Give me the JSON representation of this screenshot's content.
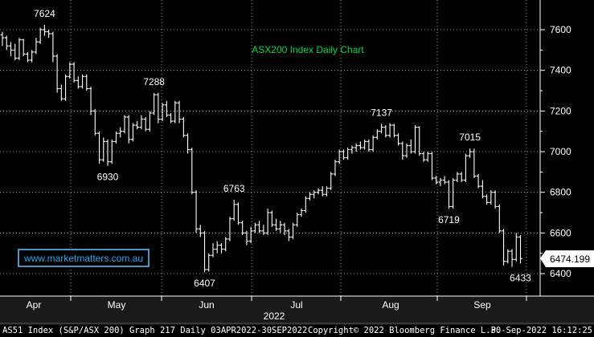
{
  "chart_data": {
    "type": "ohlc",
    "title": "ASX200 Index Daily Chart",
    "watermark": "www.marketmatters.com.au",
    "last_value": "6474.199",
    "ylim": [
      6330,
      7700
    ],
    "y_ticks": [
      7600,
      7400,
      7200,
      7000,
      6800,
      6600,
      6400
    ],
    "y_tick_labels": [
      "7600",
      "7400",
      "7200",
      "7000",
      "6800",
      "6600",
      "6400"
    ],
    "month_labels": [
      "Apr",
      "May",
      "Jun",
      "Jul",
      "Aug",
      "Sep"
    ],
    "year_label": "2022",
    "annotations": [
      {
        "label": "7624",
        "value": 7624
      },
      {
        "label": "6930",
        "value": 6930
      },
      {
        "label": "7288",
        "value": 7288
      },
      {
        "label": "6407",
        "value": 6407
      },
      {
        "label": "6763",
        "value": 6763
      },
      {
        "label": "7137",
        "value": 7137
      },
      {
        "label": "6719",
        "value": 6719
      },
      {
        "label": "7015",
        "value": 7015
      },
      {
        "label": "6433",
        "value": 6433
      }
    ],
    "series": [
      {
        "values": [
          [
            7575,
            7590,
            7520,
            7560
          ],
          [
            7560,
            7570,
            7500,
            7520
          ],
          [
            7520,
            7540,
            7470,
            7500
          ],
          [
            7500,
            7530,
            7450,
            7460
          ],
          [
            7460,
            7560,
            7450,
            7550
          ],
          [
            7550,
            7555,
            7470,
            7480
          ],
          [
            7480,
            7490,
            7440,
            7450
          ],
          [
            7450,
            7500,
            7440,
            7490
          ],
          [
            7490,
            7560,
            7480,
            7540
          ],
          [
            7540,
            7610,
            7530,
            7600
          ],
          [
            7600,
            7624,
            7570,
            7590
          ],
          [
            7590,
            7600,
            7560,
            7580
          ],
          [
            7580,
            7590,
            7440,
            7470
          ],
          [
            7470,
            7480,
            7290,
            7310
          ],
          [
            7310,
            7330,
            7250,
            7260
          ],
          [
            7260,
            7380,
            7250,
            7370
          ],
          [
            7370,
            7440,
            7360,
            7430
          ],
          [
            7430,
            7440,
            7340,
            7350
          ],
          [
            7350,
            7370,
            7310,
            7320
          ],
          [
            7320,
            7380,
            7310,
            7370
          ],
          [
            7370,
            7380,
            7300,
            7310
          ],
          [
            7310,
            7320,
            7180,
            7200
          ],
          [
            7200,
            7210,
            7080,
            7090
          ],
          [
            7090,
            7100,
            6940,
            6960
          ],
          [
            6960,
            7070,
            6950,
            7050
          ],
          [
            7050,
            7060,
            6930,
            6950
          ],
          [
            6950,
            7060,
            6940,
            7050
          ],
          [
            7050,
            7100,
            7040,
            7090
          ],
          [
            7090,
            7120,
            7070,
            7100
          ],
          [
            7100,
            7180,
            7090,
            7170
          ],
          [
            7170,
            7180,
            7040,
            7060
          ],
          [
            7060,
            7140,
            7050,
            7130
          ],
          [
            7130,
            7150,
            7110,
            7120
          ],
          [
            7120,
            7180,
            7110,
            7160
          ],
          [
            7160,
            7170,
            7100,
            7110
          ],
          [
            7110,
            7200,
            7100,
            7190
          ],
          [
            7190,
            7288,
            7180,
            7280
          ],
          [
            7280,
            7290,
            7140,
            7160
          ],
          [
            7160,
            7240,
            7150,
            7230
          ],
          [
            7230,
            7250,
            7170,
            7180
          ],
          [
            7180,
            7190,
            7140,
            7150
          ],
          [
            7150,
            7250,
            7140,
            7240
          ],
          [
            7240,
            7250,
            7140,
            7160
          ],
          [
            7160,
            7170,
            7070,
            7080
          ],
          [
            7080,
            7090,
            6990,
            7010
          ],
          [
            7010,
            7020,
            6790,
            6800
          ],
          [
            6800,
            6810,
            6600,
            6620
          ],
          [
            6620,
            6640,
            6580,
            6600
          ],
          [
            6600,
            6610,
            6407,
            6420
          ],
          [
            6420,
            6500,
            6410,
            6490
          ],
          [
            6490,
            6550,
            6480,
            6520
          ],
          [
            6520,
            6560,
            6500,
            6540
          ],
          [
            6540,
            6550,
            6500,
            6520
          ],
          [
            6520,
            6580,
            6510,
            6570
          ],
          [
            6570,
            6680,
            6560,
            6670
          ],
          [
            6670,
            6763,
            6660,
            6740
          ],
          [
            6740,
            6750,
            6640,
            6650
          ],
          [
            6650,
            6660,
            6590,
            6600
          ],
          [
            6600,
            6610,
            6540,
            6560
          ],
          [
            6560,
            6630,
            6550,
            6610
          ],
          [
            6610,
            6650,
            6600,
            6640
          ],
          [
            6640,
            6660,
            6600,
            6610
          ],
          [
            6610,
            6640,
            6590,
            6600
          ],
          [
            6600,
            6720,
            6590,
            6700
          ],
          [
            6700,
            6710,
            6630,
            6640
          ],
          [
            6640,
            6670,
            6610,
            6620
          ],
          [
            6620,
            6660,
            6600,
            6640
          ],
          [
            6640,
            6650,
            6590,
            6610
          ],
          [
            6610,
            6620,
            6560,
            6580
          ],
          [
            6580,
            6650,
            6570,
            6640
          ],
          [
            6640,
            6700,
            6630,
            6690
          ],
          [
            6690,
            6720,
            6680,
            6710
          ],
          [
            6710,
            6780,
            6700,
            6770
          ],
          [
            6770,
            6800,
            6760,
            6790
          ],
          [
            6790,
            6810,
            6770,
            6800
          ],
          [
            6800,
            6820,
            6790,
            6810
          ],
          [
            6810,
            6830,
            6780,
            6790
          ],
          [
            6790,
            6830,
            6780,
            6820
          ],
          [
            6820,
            6900,
            6810,
            6890
          ],
          [
            6890,
            6960,
            6880,
            6950
          ],
          [
            6950,
            7010,
            6940,
            7000
          ],
          [
            7000,
            7010,
            6960,
            6970
          ],
          [
            6970,
            7020,
            6960,
            7010
          ],
          [
            7010,
            7030,
            6990,
            7020
          ],
          [
            7020,
            7040,
            7000,
            7030
          ],
          [
            7030,
            7050,
            7010,
            7020
          ],
          [
            7020,
            7060,
            7010,
            7050
          ],
          [
            7050,
            7060,
            7000,
            7010
          ],
          [
            7010,
            7080,
            7000,
            7070
          ],
          [
            7070,
            7110,
            7060,
            7100
          ],
          [
            7100,
            7137,
            7090,
            7120
          ],
          [
            7120,
            7130,
            7070,
            7080
          ],
          [
            7080,
            7140,
            7070,
            7130
          ],
          [
            7130,
            7137,
            7070,
            7080
          ],
          [
            7080,
            7090,
            7030,
            7040
          ],
          [
            7040,
            7050,
            6960,
            6980
          ],
          [
            6980,
            7040,
            6970,
            7030
          ],
          [
            7030,
            7060,
            6990,
            7000
          ],
          [
            7000,
            7130,
            6990,
            7120
          ],
          [
            7120,
            7125,
            6980,
            6990
          ],
          [
            6990,
            7000,
            6950,
            6960
          ],
          [
            6960,
            7000,
            6950,
            6990
          ],
          [
            6990,
            7000,
            6860,
            6870
          ],
          [
            6870,
            6880,
            6840,
            6850
          ],
          [
            6850,
            6870,
            6830,
            6860
          ],
          [
            6860,
            6880,
            6840,
            6850
          ],
          [
            6850,
            6860,
            6719,
            6730
          ],
          [
            6730,
            6870,
            6720,
            6860
          ],
          [
            6860,
            6900,
            6850,
            6890
          ],
          [
            6890,
            6900,
            6850,
            6860
          ],
          [
            6860,
            6990,
            6850,
            6980
          ],
          [
            6980,
            7015,
            6970,
            7000
          ],
          [
            7000,
            7015,
            6870,
            6880
          ],
          [
            6880,
            6890,
            6820,
            6830
          ],
          [
            6830,
            6860,
            6770,
            6780
          ],
          [
            6780,
            6790,
            6740,
            6750
          ],
          [
            6750,
            6810,
            6740,
            6800
          ],
          [
            6800,
            6810,
            6720,
            6730
          ],
          [
            6730,
            6740,
            6600,
            6610
          ],
          [
            6610,
            6620,
            6440,
            6460
          ],
          [
            6460,
            6520,
            6450,
            6510
          ],
          [
            6510,
            6520,
            6433,
            6470
          ],
          [
            6470,
            6600,
            6460,
            6580
          ],
          [
            6580,
            6590,
            6450,
            6474
          ]
        ]
      }
    ]
  },
  "footer": {
    "left": "AS51 Index (S&P/ASX 200) Graph 217  Daily 03APR2022-30SEP2022",
    "center": "Copyright© 2022 Bloomberg Finance L.P.",
    "right": "30-Sep-2022 16:12:25"
  },
  "colors": {
    "background": "#000000",
    "grid": "#ffffff",
    "bars": "#ffffff",
    "title": "#00d84a",
    "watermark": "#2aa7e8",
    "watermark_border": "#5cc8ff",
    "last_value_bg": "#ffffff",
    "axis_bg": "#1a1a1a"
  }
}
